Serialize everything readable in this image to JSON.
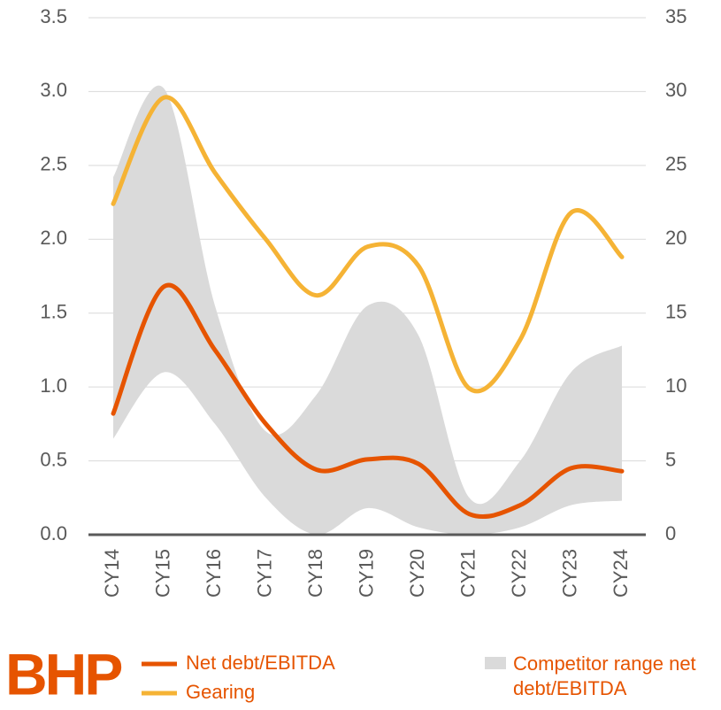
{
  "chart_data": {
    "type": "line",
    "logo": "BHP",
    "categories": [
      "CY14",
      "CY15",
      "CY16",
      "CY17",
      "CY18",
      "CY19",
      "CY20",
      "CY21",
      "CY22",
      "CY23",
      "CY24"
    ],
    "series": [
      {
        "name": "Net debt/EBITDA",
        "color": "#e65400",
        "values": [
          0.82,
          1.68,
          1.25,
          0.75,
          0.44,
          0.51,
          0.48,
          0.14,
          0.2,
          0.45,
          0.43
        ]
      },
      {
        "name": "Gearing",
        "color": "#f5b335",
        "axis": "y2",
        "values": [
          22.4,
          29.6,
          24.5,
          20.0,
          16.2,
          19.5,
          18.2,
          9.9,
          13.2,
          21.8,
          18.8
        ]
      }
    ],
    "range": {
      "name": "Competitor range net debt/EBITDA",
      "color": "#dadada",
      "low": [
        0.65,
        1.1,
        0.75,
        0.25,
        0.0,
        0.18,
        0.05,
        0.0,
        0.05,
        0.2,
        0.23
      ],
      "high": [
        2.42,
        3.02,
        1.55,
        0.7,
        0.95,
        1.55,
        1.35,
        0.25,
        0.5,
        1.1,
        1.28
      ]
    },
    "ylim": [
      0,
      3.5
    ],
    "yticks": [
      {
        "value": 0,
        "label": "0.0"
      },
      0.5,
      {
        "value": 1,
        "label": "1.0"
      },
      1.5,
      {
        "value": 2,
        "label": "2.0"
      },
      2.5,
      {
        "value": 3,
        "label": "3.0"
      },
      3.5
    ],
    "y2lim": [
      0,
      35
    ],
    "y2ticks": [
      0,
      5,
      10,
      15,
      20,
      25,
      30,
      35
    ],
    "grid": true
  }
}
